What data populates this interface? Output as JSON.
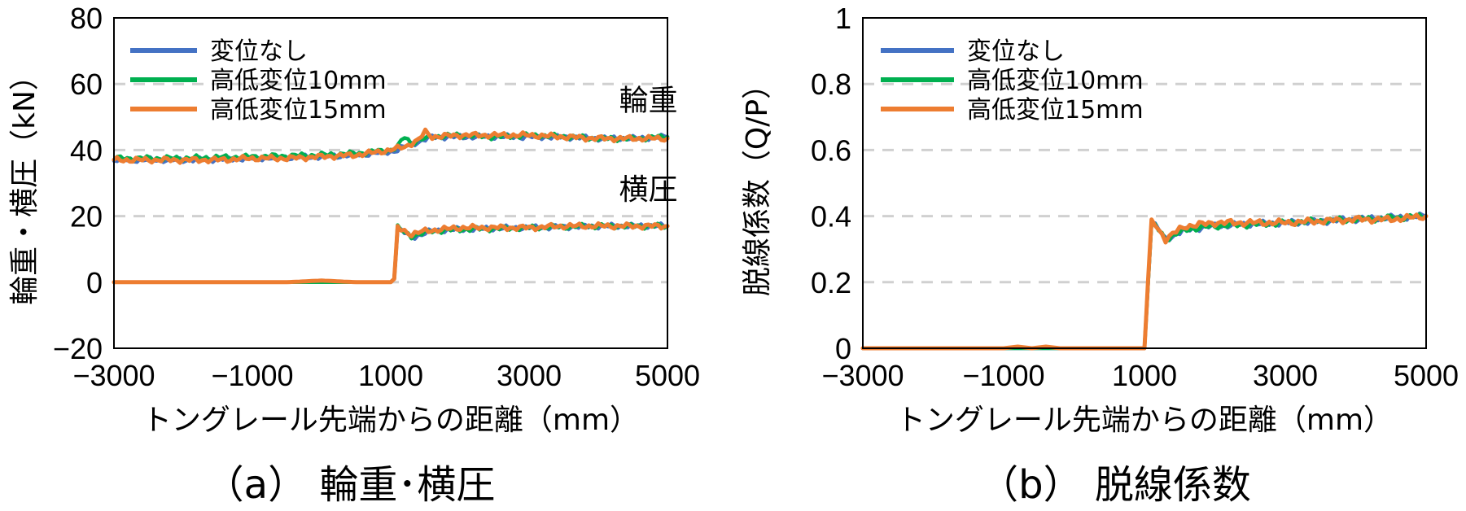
{
  "chart_data": [
    {
      "type": "line",
      "caption": "（a） 輪重･横圧",
      "xlabel": "トングレール先端からの距離（mm）",
      "ylabel": "輪重・横圧（kN）",
      "xlim": [
        -3000,
        5000
      ],
      "ylim": [
        -20,
        80
      ],
      "xticks": [
        "−3000",
        "−1000",
        "1000",
        "3000",
        "5000"
      ],
      "xtick_values": [
        -3000,
        -1000,
        1000,
        3000,
        5000
      ],
      "yticks": [
        "−20",
        "0",
        "20",
        "40",
        "60",
        "80"
      ],
      "ytick_values": [
        -20,
        0,
        20,
        40,
        60,
        80
      ],
      "grid": "horizontal-dashed",
      "legend_position": "top-left",
      "annotations": [
        {
          "text": "輪重",
          "x": 4300,
          "y": 55
        },
        {
          "text": "横圧",
          "x": 4300,
          "y": 28
        }
      ],
      "series": [
        {
          "name": "変位なし",
          "color": "#4472C4",
          "groups": [
            {
              "x": [
                -3000,
                -2000,
                -1000,
                0,
                500,
                1000,
                1100,
                1200,
                1400,
                1600,
                2000,
                2500,
                3000,
                3500,
                4000,
                4500,
                5000
              ],
              "y": [
                37,
                37,
                37.5,
                38,
                38.5,
                39.5,
                40,
                41,
                42.5,
                44,
                44,
                44,
                44,
                44,
                43.5,
                43.5,
                44
              ]
            },
            {
              "x": [
                -3000,
                -2000,
                -1000,
                0,
                500,
                1000,
                1050,
                1100,
                1200,
                1300,
                1600,
                2000,
                3000,
                4000,
                5000
              ],
              "y": [
                0,
                0,
                0,
                0,
                0,
                0,
                1,
                16,
                15,
                13.5,
                15.5,
                16,
                16.5,
                17,
                17
              ]
            }
          ]
        },
        {
          "name": "高低変位10mm",
          "color": "#00B050",
          "groups": [
            {
              "x": [
                -3000,
                -2000,
                -1000,
                0,
                500,
                1000,
                1100,
                1200,
                1300,
                1400,
                1600,
                2000,
                2500,
                3000,
                3500,
                4000,
                4500,
                5000
              ],
              "y": [
                37.5,
                37.5,
                38,
                38.5,
                39,
                40,
                41,
                44,
                42,
                43,
                44,
                44.5,
                44,
                44.5,
                44,
                43.5,
                43.5,
                44
              ]
            },
            {
              "x": [
                -3000,
                -2000,
                -1000,
                0,
                500,
                1000,
                1050,
                1100,
                1200,
                1300,
                1600,
                2000,
                3000,
                4000,
                5000
              ],
              "y": [
                0,
                0,
                0,
                0,
                0,
                0,
                1,
                16.5,
                15,
                14,
                15.5,
                16,
                16.5,
                17,
                17
              ]
            }
          ]
        },
        {
          "name": "高低変位15mm",
          "color": "#ED7D31",
          "groups": [
            {
              "x": [
                -3000,
                -2500,
                -2000,
                -1500,
                -1000,
                -500,
                0,
                500,
                1000,
                1200,
                1400,
                1500,
                1600,
                2000,
                2500,
                3000,
                3500,
                4000,
                4500,
                5000
              ],
              "y": [
                37,
                37,
                37,
                37,
                37.5,
                37.5,
                38,
                38.5,
                40,
                41,
                43,
                45.5,
                44,
                44.5,
                44.5,
                44.5,
                44,
                43.5,
                43.5,
                43.5
              ]
            },
            {
              "x": [
                -3000,
                -2000,
                -1000,
                -500,
                0,
                500,
                1000,
                1050,
                1100,
                1150,
                1300,
                1500,
                2000,
                2500,
                3000,
                3500,
                4000,
                4500,
                5000
              ],
              "y": [
                0,
                0,
                0,
                0,
                0.5,
                0,
                0,
                1,
                16.5,
                16,
                14.5,
                15.5,
                16.5,
                16.5,
                16.5,
                17,
                17,
                17,
                17
              ]
            }
          ]
        }
      ]
    },
    {
      "type": "line",
      "caption": "（b） 脱線係数",
      "xlabel": "トングレール先端からの距離（mm）",
      "ylabel": "脱線係数（Q/P）",
      "xlim": [
        -3000,
        5000
      ],
      "ylim": [
        0,
        1
      ],
      "xticks": [
        "−3000",
        "−1000",
        "1000",
        "3000",
        "5000"
      ],
      "xtick_values": [
        -3000,
        -1000,
        1000,
        3000,
        5000
      ],
      "yticks": [
        "0",
        "0.2",
        "0.4",
        "0.6",
        "0.8",
        "1"
      ],
      "ytick_values": [
        0,
        0.2,
        0.4,
        0.6,
        0.8,
        1
      ],
      "grid": "horizontal-dashed",
      "legend_position": "top-left",
      "series": [
        {
          "name": "変位なし",
          "color": "#4472C4",
          "groups": [
            {
              "x": [
                -3000,
                -1000,
                0,
                1000,
                1100,
                1200,
                1300,
                1600,
                2000,
                3000,
                4000,
                5000
              ],
              "y": [
                0,
                0,
                0,
                0,
                0.38,
                0.36,
                0.33,
                0.36,
                0.37,
                0.38,
                0.39,
                0.4
              ]
            }
          ]
        },
        {
          "name": "高低変位10mm",
          "color": "#00B050",
          "groups": [
            {
              "x": [
                -3000,
                -1000,
                0,
                1000,
                1100,
                1200,
                1300,
                1600,
                2000,
                3000,
                4000,
                5000
              ],
              "y": [
                0,
                0,
                0,
                0,
                0.38,
                0.36,
                0.33,
                0.36,
                0.37,
                0.38,
                0.39,
                0.4
              ]
            }
          ]
        },
        {
          "name": "高低変位15mm",
          "color": "#ED7D31",
          "groups": [
            {
              "x": [
                -3000,
                -1500,
                -1000,
                -800,
                -600,
                -400,
                -200,
                0,
                500,
                1000,
                1050,
                1100,
                1200,
                1300,
                1500,
                1600,
                2000,
                2500,
                3000,
                3500,
                4000,
                4500,
                5000
              ],
              "y": [
                0,
                0,
                0,
                0.005,
                0,
                0.005,
                0,
                0,
                0,
                0,
                0.2,
                0.39,
                0.36,
                0.33,
                0.36,
                0.37,
                0.38,
                0.38,
                0.38,
                0.385,
                0.39,
                0.39,
                0.4
              ]
            }
          ]
        }
      ]
    }
  ]
}
